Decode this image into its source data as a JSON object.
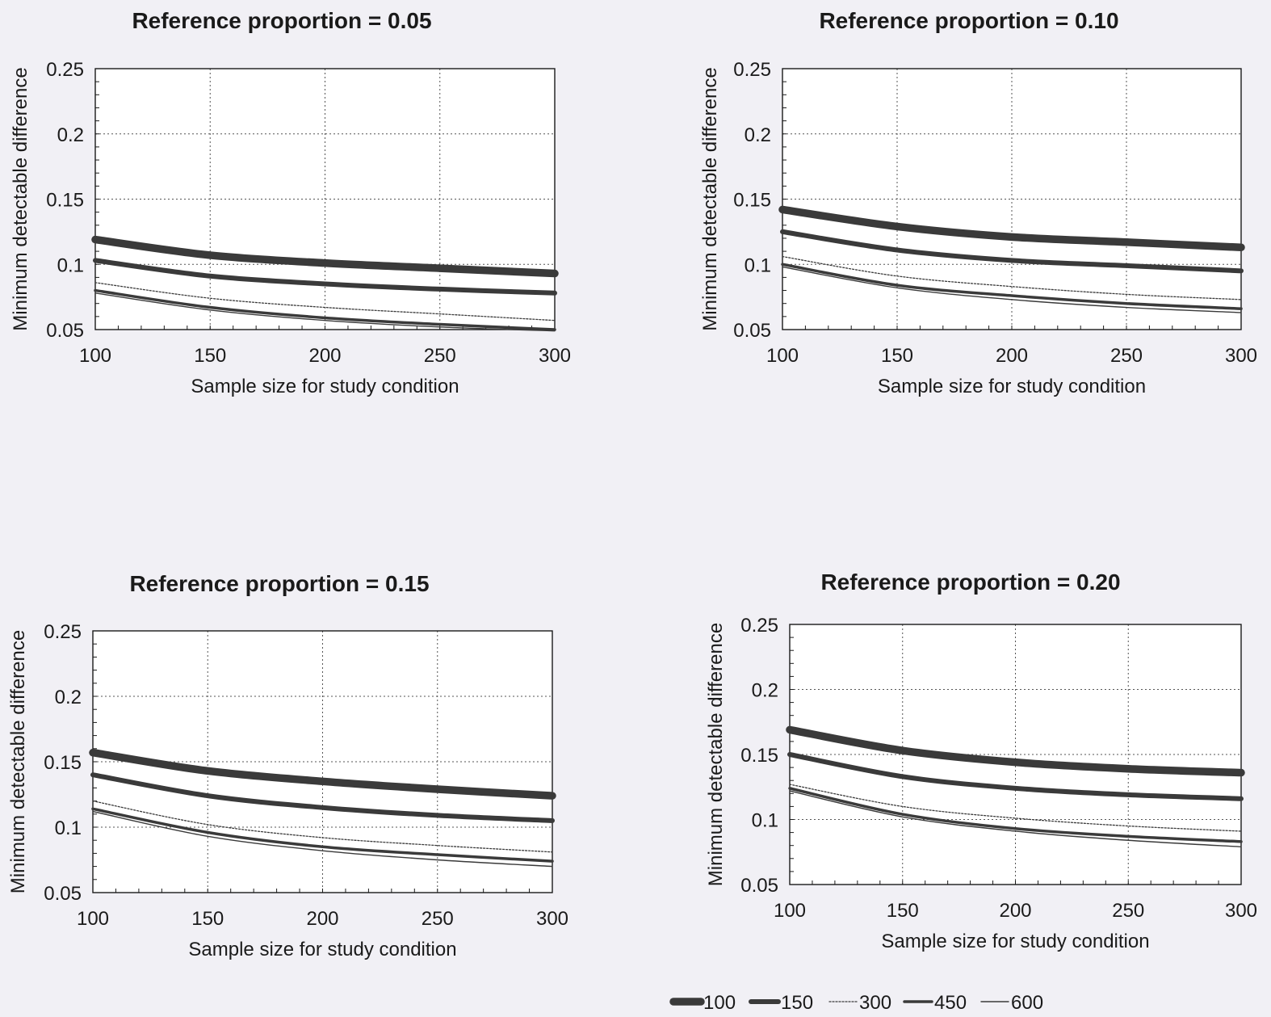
{
  "chart_data": [
    {
      "type": "line",
      "title": "Reference proportion = 0.05",
      "xlabel": "Sample size for study condition",
      "ylabel": "Minimum detectable difference",
      "xlim": [
        100,
        300
      ],
      "ylim": [
        0.05,
        0.25
      ],
      "xticks": [
        "100",
        "150",
        "200",
        "250",
        "300"
      ],
      "yticks": [
        "0.05",
        "0.1",
        "0.15",
        "0.2",
        "0.25"
      ],
      "grid": true,
      "x": [
        100,
        150,
        200,
        250,
        300
      ],
      "series": [
        {
          "name": "100",
          "values": [
            0.119,
            0.107,
            0.101,
            0.097,
            0.093
          ]
        },
        {
          "name": "150",
          "values": [
            0.103,
            0.091,
            0.085,
            0.081,
            0.078
          ]
        },
        {
          "name": "300",
          "values": [
            0.086,
            0.074,
            0.067,
            0.062,
            0.057
          ]
        },
        {
          "name": "450",
          "values": [
            0.08,
            0.067,
            0.059,
            0.054,
            0.05
          ]
        },
        {
          "name": "600",
          "values": [
            0.078,
            0.065,
            0.057,
            0.052,
            0.049
          ]
        }
      ]
    },
    {
      "type": "line",
      "title": "Reference proportion = 0.10",
      "xlabel": "Sample size for study condition",
      "ylabel": "Minimum detectable difference",
      "xlim": [
        100,
        300
      ],
      "ylim": [
        0.05,
        0.25
      ],
      "xticks": [
        "100",
        "150",
        "200",
        "250",
        "300"
      ],
      "yticks": [
        "0.05",
        "0.1",
        "0.15",
        "0.2",
        "0.25"
      ],
      "grid": true,
      "x": [
        100,
        150,
        200,
        250,
        300
      ],
      "series": [
        {
          "name": "100",
          "values": [
            0.142,
            0.129,
            0.121,
            0.117,
            0.113
          ]
        },
        {
          "name": "150",
          "values": [
            0.125,
            0.111,
            0.103,
            0.099,
            0.095
          ]
        },
        {
          "name": "300",
          "values": [
            0.106,
            0.091,
            0.083,
            0.077,
            0.073
          ]
        },
        {
          "name": "450",
          "values": [
            0.1,
            0.084,
            0.076,
            0.07,
            0.066
          ]
        },
        {
          "name": "600",
          "values": [
            0.098,
            0.082,
            0.073,
            0.067,
            0.063
          ]
        }
      ]
    },
    {
      "type": "line",
      "title": "Reference proportion = 0.15",
      "xlabel": "Sample size for study condition",
      "ylabel": "Minimum detectable difference",
      "xlim": [
        100,
        300
      ],
      "ylim": [
        0.05,
        0.25
      ],
      "xticks": [
        "100",
        "150",
        "200",
        "250",
        "300"
      ],
      "yticks": [
        "0.05",
        "0.1",
        "0.15",
        "0.2",
        "0.25"
      ],
      "grid": true,
      "x": [
        100,
        150,
        200,
        250,
        300
      ],
      "series": [
        {
          "name": "100",
          "values": [
            0.157,
            0.143,
            0.135,
            0.129,
            0.124
          ]
        },
        {
          "name": "150",
          "values": [
            0.14,
            0.124,
            0.115,
            0.109,
            0.105
          ]
        },
        {
          "name": "300",
          "values": [
            0.12,
            0.102,
            0.092,
            0.086,
            0.081
          ]
        },
        {
          "name": "450",
          "values": [
            0.114,
            0.096,
            0.085,
            0.079,
            0.074
          ]
        },
        {
          "name": "600",
          "values": [
            0.112,
            0.093,
            0.082,
            0.075,
            0.07
          ]
        }
      ]
    },
    {
      "type": "line",
      "title": "Reference proportion = 0.20",
      "xlabel": "Sample size for study condition",
      "ylabel": "Minimum detectable difference",
      "xlim": [
        100,
        300
      ],
      "ylim": [
        0.05,
        0.25
      ],
      "xticks": [
        "100",
        "150",
        "200",
        "250",
        "300"
      ],
      "yticks": [
        "0.05",
        "0.1",
        "0.15",
        "0.2",
        "0.25"
      ],
      "grid": true,
      "x": [
        100,
        150,
        200,
        250,
        300
      ],
      "series": [
        {
          "name": "100",
          "values": [
            0.169,
            0.153,
            0.144,
            0.139,
            0.136
          ]
        },
        {
          "name": "150",
          "values": [
            0.15,
            0.133,
            0.124,
            0.119,
            0.116
          ]
        },
        {
          "name": "300",
          "values": [
            0.127,
            0.11,
            0.101,
            0.095,
            0.091
          ]
        },
        {
          "name": "450",
          "values": [
            0.124,
            0.104,
            0.093,
            0.087,
            0.083
          ]
        },
        {
          "name": "600",
          "values": [
            0.122,
            0.102,
            0.091,
            0.084,
            0.079
          ]
        }
      ]
    }
  ],
  "legend": {
    "placement": "bottom-right",
    "entries": [
      "100",
      "150",
      "300",
      "450",
      "600"
    ]
  },
  "colors": {
    "background": "#f1f0f5",
    "plot_area": "#ffffff",
    "ink": "#1a1a1a",
    "series": "#3a3a3a"
  }
}
